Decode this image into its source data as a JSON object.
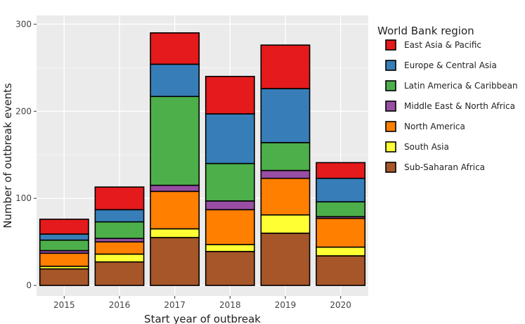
{
  "chart_data": {
    "type": "bar",
    "stacked": true,
    "xlabel": "Start year of outbreak",
    "ylabel": "Number of outbreak events",
    "ylim": [
      -12,
      310
    ],
    "yticks": [
      0,
      100,
      200,
      300
    ],
    "grid": true,
    "legend_position": "right",
    "legend_title": "World Bank region",
    "categories": [
      "2015",
      "2016",
      "2017",
      "2018",
      "2019",
      "2020"
    ],
    "series": [
      {
        "name": "Sub-Saharan Africa",
        "color": "#A65628",
        "values": [
          19,
          27,
          55,
          39,
          60,
          34
        ]
      },
      {
        "name": "South Asia",
        "color": "#FFFF33",
        "values": [
          3,
          9,
          10,
          8,
          21,
          10
        ]
      },
      {
        "name": "North America",
        "color": "#FF7F00",
        "values": [
          15,
          14,
          43,
          40,
          42,
          33
        ]
      },
      {
        "name": "Middle East & North Africa",
        "color": "#984EA3",
        "values": [
          3,
          4,
          7,
          10,
          9,
          2
        ]
      },
      {
        "name": "Latin America & Caribbean",
        "color": "#4DAF4A",
        "values": [
          12,
          19,
          102,
          43,
          32,
          17
        ]
      },
      {
        "name": "Europe & Central Asia",
        "color": "#377EB8",
        "values": [
          7,
          14,
          37,
          57,
          62,
          27
        ]
      },
      {
        "name": "East Asia & Pacific",
        "color": "#E41A1C",
        "values": [
          17,
          26,
          36,
          43,
          50,
          18
        ]
      }
    ]
  }
}
